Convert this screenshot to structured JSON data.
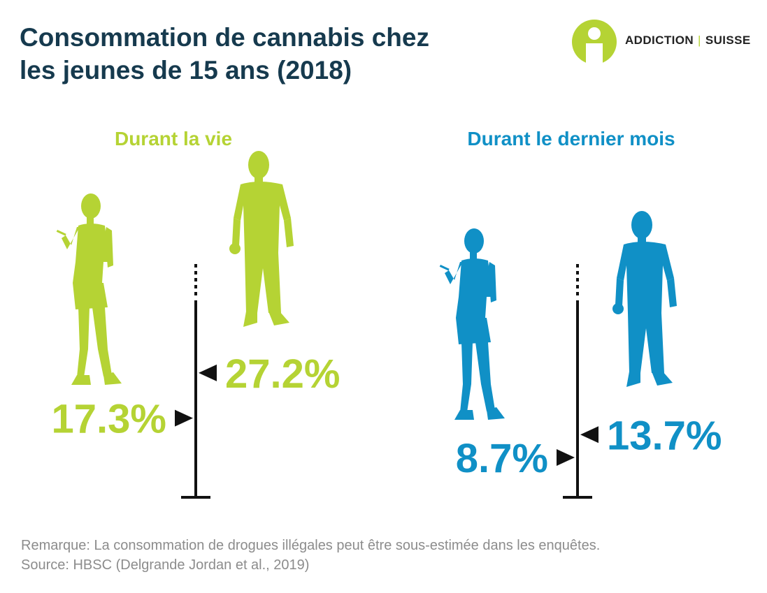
{
  "header": {
    "title_line1": "Consommation de cannabis chez",
    "title_line2": "les jeunes de 15 ans (2018)"
  },
  "logo": {
    "text_left": "ADDICTION",
    "text_right": "SUISSE",
    "color": "#b5d334"
  },
  "colors": {
    "title": "#163a4e",
    "green": "#b5d334",
    "blue": "#1090c6",
    "axis": "#111111",
    "notes": "#8c8c8c"
  },
  "chart_data": [
    {
      "type": "bar",
      "title": "Durant la vie",
      "color": "#b5d334",
      "series": [
        {
          "sex": "female",
          "value": 17.3,
          "label": "17.3%"
        },
        {
          "sex": "male",
          "value": 27.2,
          "label": "27.2%"
        }
      ]
    },
    {
      "type": "bar",
      "title": "Durant le dernier mois",
      "color": "#1090c6",
      "series": [
        {
          "sex": "female",
          "value": 8.7,
          "label": "8.7%"
        },
        {
          "sex": "male",
          "value": 13.7,
          "label": "13.7%"
        }
      ]
    }
  ],
  "notes": {
    "remark": "Remarque: La consommation de drogues illégales peut être sous-estimée dans les enquêtes.",
    "source": "Source: HBSC (Delgrande Jordan et al., 2019)"
  }
}
